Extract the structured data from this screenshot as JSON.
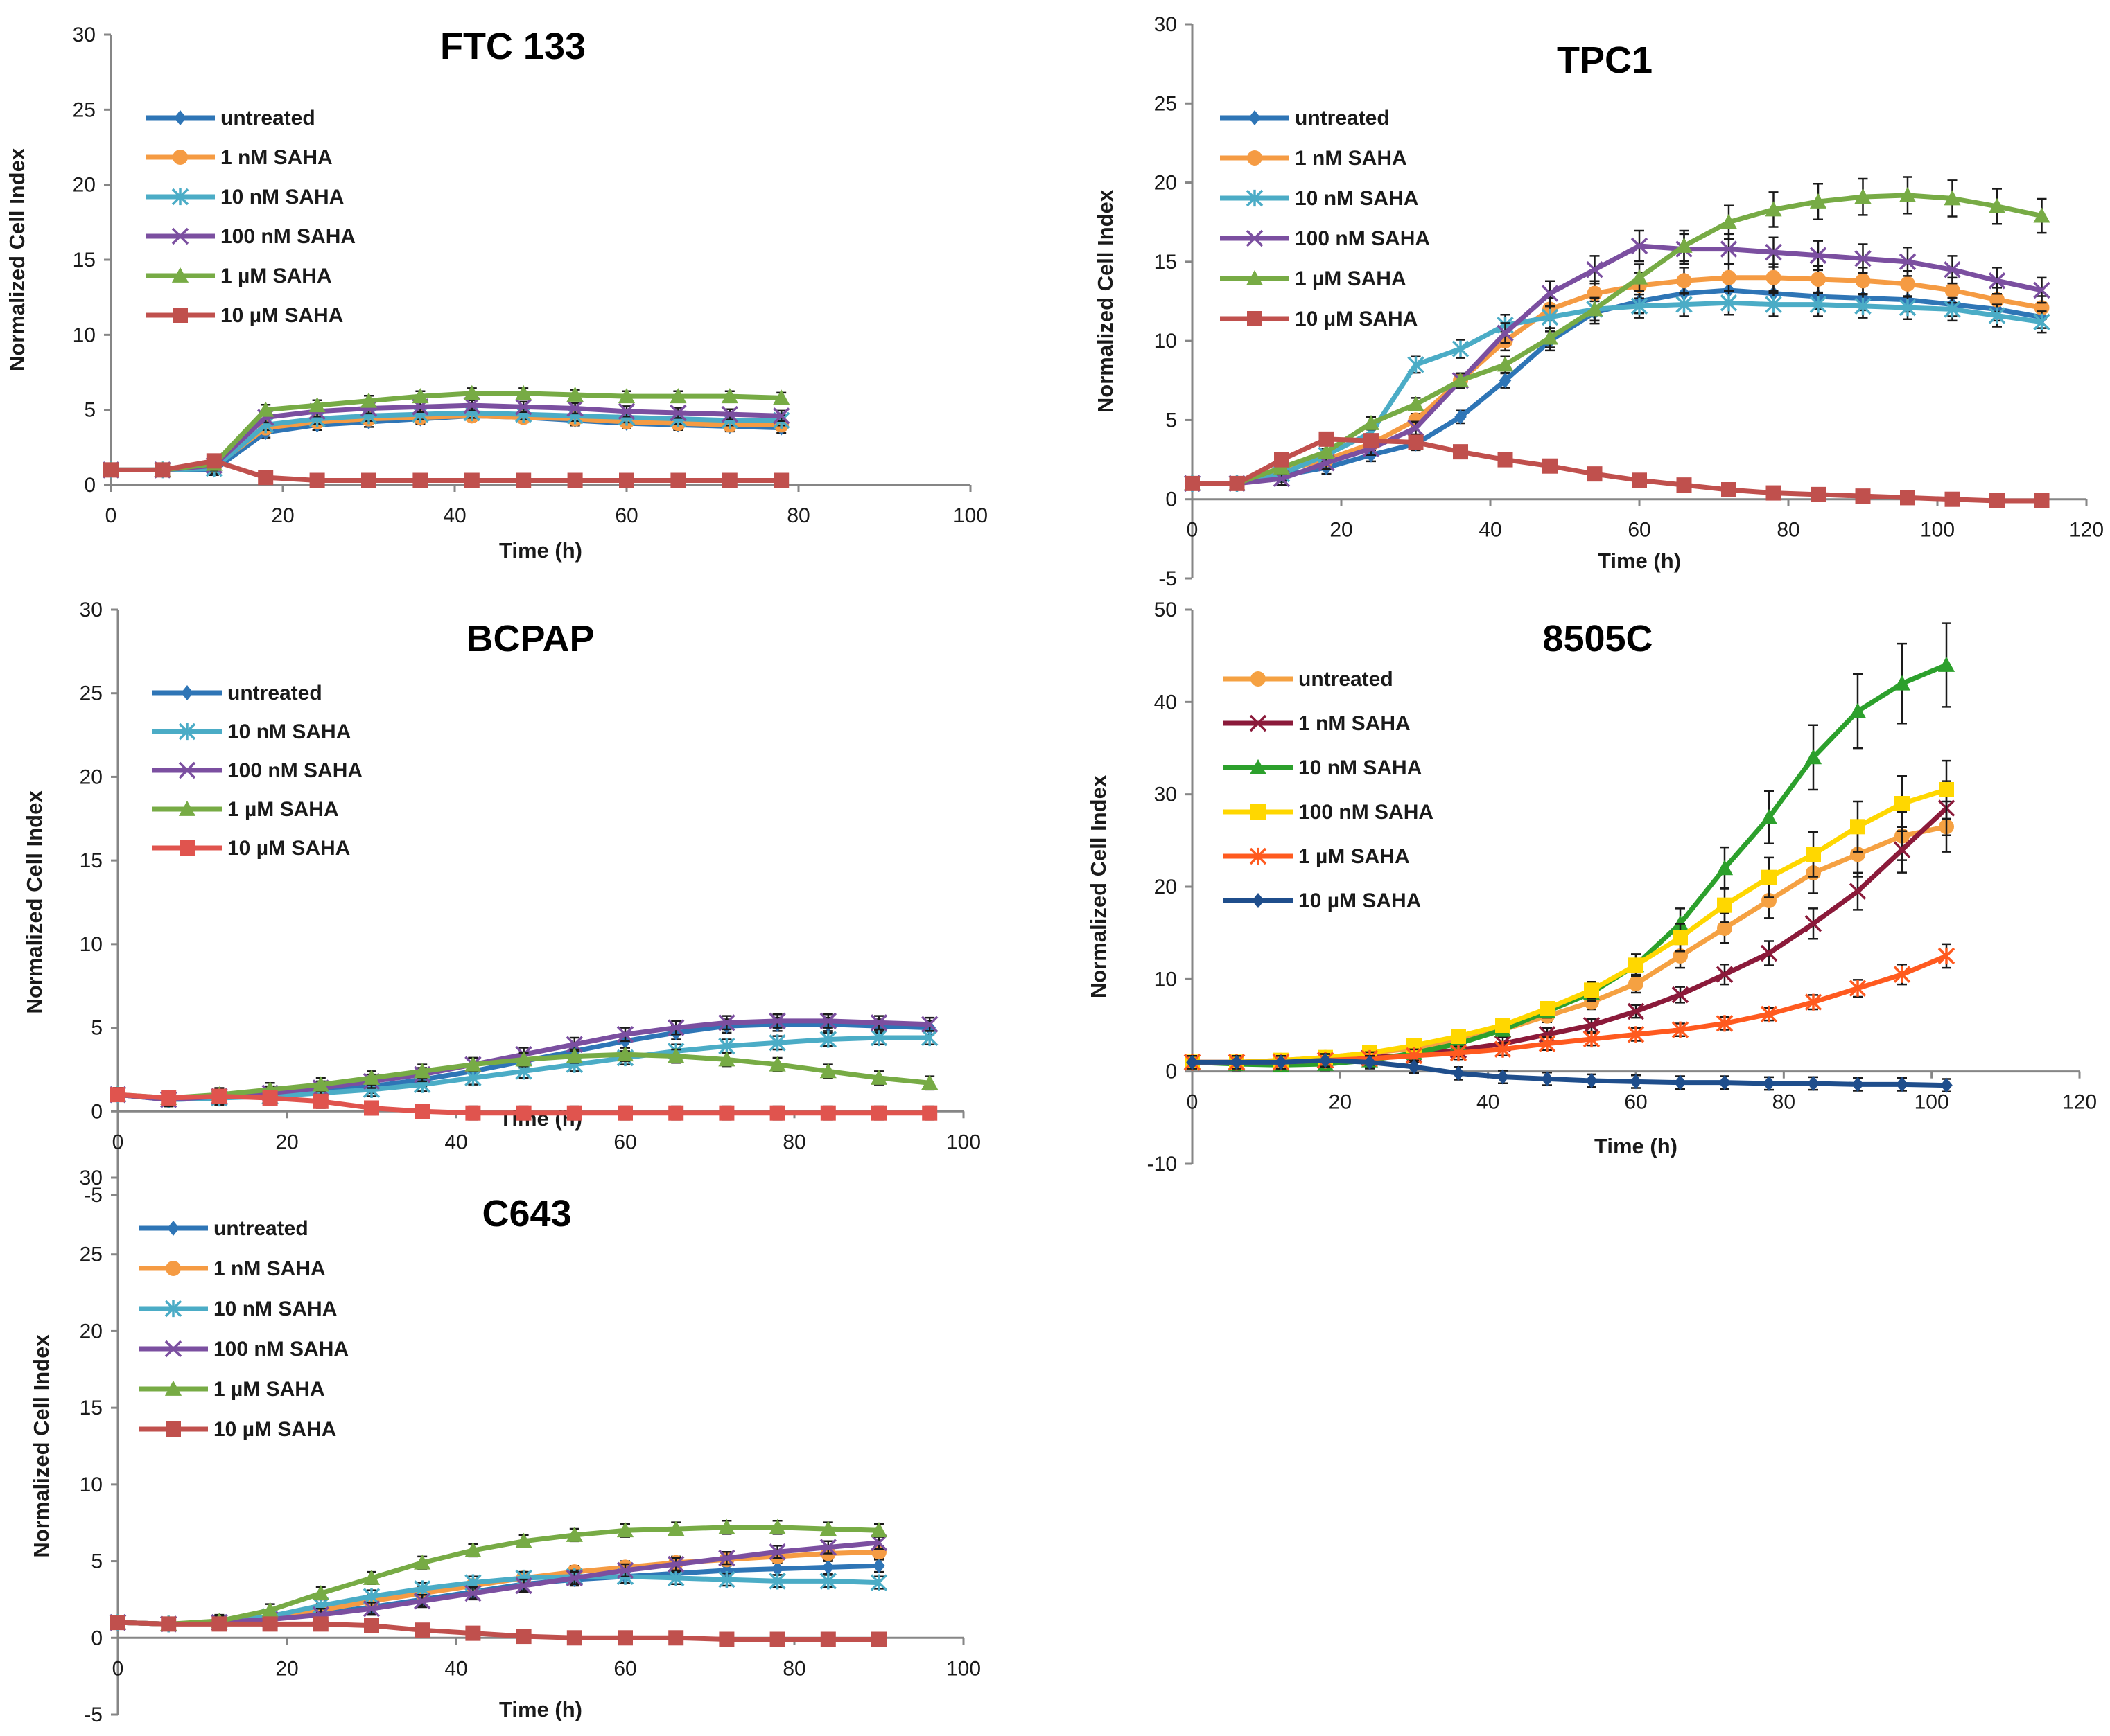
{
  "chart_data": [
    {
      "type": "line",
      "title": "FTC 133",
      "xlabel": "Time (h)",
      "ylabel": "Normalized Cell Index",
      "xlim": [
        0,
        100
      ],
      "ylim": [
        0,
        30
      ],
      "xticks": [
        0,
        20,
        40,
        60,
        80,
        100
      ],
      "yticks": [
        0,
        5,
        10,
        15,
        20,
        25,
        30
      ],
      "legend_position": "top-left",
      "x": [
        0,
        6,
        12,
        18,
        24,
        30,
        36,
        42,
        48,
        54,
        60,
        66,
        72,
        78
      ],
      "series": [
        {
          "name": "untreated",
          "color": "#2e75b6",
          "marker": "diamond",
          "values": [
            1,
            1,
            1,
            3.5,
            4,
            4.2,
            4.4,
            4.6,
            4.5,
            4.3,
            4.1,
            4.0,
            3.9,
            3.8
          ]
        },
        {
          "name": "1 nM SAHA",
          "color": "#f59b43",
          "marker": "circle",
          "values": [
            1,
            1,
            1.2,
            3.8,
            4.2,
            4.4,
            4.5,
            4.6,
            4.5,
            4.4,
            4.2,
            4.1,
            4.0,
            4.0
          ]
        },
        {
          "name": "10 nM SAHA",
          "color": "#4bacc6",
          "marker": "star",
          "values": [
            1,
            1,
            1.1,
            4,
            4.4,
            4.6,
            4.7,
            4.8,
            4.7,
            4.6,
            4.5,
            4.4,
            4.3,
            4.3
          ]
        },
        {
          "name": "100 nM SAHA",
          "color": "#7b4fa0",
          "marker": "x",
          "values": [
            1,
            1,
            1.3,
            4.5,
            4.9,
            5.1,
            5.2,
            5.3,
            5.2,
            5.1,
            4.9,
            4.8,
            4.7,
            4.6
          ]
        },
        {
          "name": "1 µM SAHA",
          "color": "#77ab45",
          "marker": "triangle",
          "values": [
            1,
            1,
            1.4,
            5,
            5.3,
            5.6,
            5.9,
            6.1,
            6.1,
            6.0,
            5.9,
            5.9,
            5.9,
            5.8
          ]
        },
        {
          "name": "10 µM SAHA",
          "color": "#c0504d",
          "marker": "square",
          "values": [
            1,
            1,
            1.6,
            0.5,
            0.3,
            0.3,
            0.3,
            0.3,
            0.3,
            0.3,
            0.3,
            0.3,
            0.3,
            0.3
          ]
        }
      ]
    },
    {
      "type": "line",
      "title": "TPC1",
      "xlabel": "Time (h)",
      "ylabel": "Normalized Cell Index",
      "xlim": [
        0,
        120
      ],
      "ylim": [
        -5,
        30
      ],
      "xticks": [
        0,
        20,
        40,
        60,
        80,
        100,
        120
      ],
      "yticks": [
        -5,
        0,
        5,
        10,
        15,
        20,
        25,
        30
      ],
      "legend_position": "top-left",
      "x": [
        0,
        6,
        12,
        18,
        24,
        30,
        36,
        42,
        48,
        54,
        60,
        66,
        72,
        78,
        84,
        90,
        96,
        102,
        108,
        114
      ],
      "series": [
        {
          "name": "untreated",
          "color": "#2e75b6",
          "marker": "diamond",
          "values": [
            1,
            1,
            1.5,
            2,
            2.8,
            3.5,
            5.2,
            7.5,
            10,
            11.8,
            12.5,
            13,
            13.2,
            13,
            12.8,
            12.7,
            12.6,
            12.3,
            12,
            11.5
          ]
        },
        {
          "name": "1 nM SAHA",
          "color": "#f59b43",
          "marker": "circle",
          "values": [
            1,
            1,
            1.8,
            2.5,
            3.5,
            5,
            7.5,
            10,
            12,
            13,
            13.5,
            13.8,
            14,
            14,
            13.9,
            13.8,
            13.6,
            13.2,
            12.6,
            12.1
          ]
        },
        {
          "name": "10 nM SAHA",
          "color": "#4bacc6",
          "marker": "star",
          "values": [
            1,
            1,
            1.6,
            2.8,
            4.2,
            8.5,
            9.5,
            11,
            11.5,
            12,
            12.2,
            12.3,
            12.4,
            12.3,
            12.3,
            12.2,
            12.1,
            12,
            11.6,
            11.2
          ]
        },
        {
          "name": "100 nM SAHA",
          "color": "#7b4fa0",
          "marker": "x",
          "values": [
            1,
            1,
            1.3,
            2.3,
            3.2,
            4.5,
            7.5,
            10.5,
            13,
            14.5,
            16,
            15.8,
            15.8,
            15.6,
            15.4,
            15.2,
            15,
            14.5,
            13.8,
            13.2
          ]
        },
        {
          "name": "1 µM SAHA",
          "color": "#77ab45",
          "marker": "triangle",
          "values": [
            1,
            1,
            2,
            3,
            4.8,
            6,
            7.5,
            8.5,
            10.2,
            12,
            14,
            16,
            17.5,
            18.3,
            18.8,
            19.1,
            19.2,
            19,
            18.5,
            17.9
          ]
        },
        {
          "name": "10 µM SAHA",
          "color": "#c0504d",
          "marker": "square",
          "values": [
            1,
            1,
            2.5,
            3.8,
            3.7,
            3.6,
            3,
            2.5,
            2.1,
            1.6,
            1.2,
            0.9,
            0.6,
            0.4,
            0.3,
            0.2,
            0.1,
            0,
            -0.1,
            -0.1
          ]
        }
      ]
    },
    {
      "type": "line",
      "title": "BCPAP",
      "xlabel": "Time (h)",
      "ylabel": "Normalized Cell Index",
      "xlim": [
        0,
        100
      ],
      "ylim": [
        -5,
        30
      ],
      "xticks": [
        0,
        20,
        40,
        60,
        80,
        100
      ],
      "yticks": [
        -5,
        0,
        5,
        10,
        15,
        20,
        25,
        30
      ],
      "legend_position": "top-left",
      "x": [
        0,
        6,
        12,
        18,
        24,
        30,
        36,
        42,
        48,
        54,
        60,
        66,
        72,
        78,
        84,
        90,
        96
      ],
      "series": [
        {
          "name": "untreated",
          "color": "#2e75b6",
          "marker": "diamond",
          "values": [
            1,
            0.7,
            0.8,
            1,
            1.2,
            1.5,
            1.9,
            2.4,
            3,
            3.6,
            4.2,
            4.7,
            5.1,
            5.2,
            5.2,
            5.1,
            5
          ]
        },
        {
          "name": "10 nM SAHA",
          "color": "#4bacc6",
          "marker": "star",
          "values": [
            1,
            0.7,
            0.8,
            0.9,
            1.1,
            1.3,
            1.6,
            2,
            2.4,
            2.8,
            3.2,
            3.6,
            3.9,
            4.1,
            4.3,
            4.4,
            4.4
          ]
        },
        {
          "name": "100 nM SAHA",
          "color": "#7b4fa0",
          "marker": "x",
          "values": [
            1,
            0.7,
            0.9,
            1.1,
            1.4,
            1.8,
            2.2,
            2.8,
            3.4,
            4,
            4.6,
            5,
            5.3,
            5.4,
            5.4,
            5.3,
            5.2
          ]
        },
        {
          "name": "1 µM SAHA",
          "color": "#77ab45",
          "marker": "triangle",
          "values": [
            1,
            0.8,
            1,
            1.3,
            1.6,
            2,
            2.4,
            2.8,
            3.1,
            3.3,
            3.4,
            3.3,
            3.1,
            2.8,
            2.4,
            2,
            1.7
          ]
        },
        {
          "name": "10 µM SAHA",
          "color": "#e0544e",
          "marker": "square",
          "values": [
            1,
            0.8,
            0.9,
            0.8,
            0.6,
            0.2,
            0,
            -0.1,
            -0.1,
            -0.1,
            -0.1,
            -0.1,
            -0.1,
            -0.1,
            -0.1,
            -0.1,
            -0.1
          ]
        }
      ]
    },
    {
      "type": "line",
      "title": "8505C",
      "xlabel": "Time (h)",
      "ylabel": "Normalized Cell Index",
      "xlim": [
        0,
        120
      ],
      "ylim": [
        -10,
        50
      ],
      "xticks": [
        0,
        20,
        40,
        60,
        80,
        100,
        120
      ],
      "yticks": [
        -10,
        0,
        10,
        20,
        30,
        40,
        50
      ],
      "legend_position": "top-left",
      "x": [
        0,
        6,
        12,
        18,
        24,
        30,
        36,
        42,
        48,
        54,
        60,
        66,
        72,
        78,
        84,
        90,
        96,
        102
      ],
      "series": [
        {
          "name": "untreated",
          "color": "#f5a142",
          "marker": "circle",
          "values": [
            1,
            1,
            1.2,
            1.5,
            2,
            2.5,
            3.5,
            4.5,
            6,
            7.5,
            9.5,
            12.5,
            15.5,
            18.5,
            21.5,
            23.5,
            25.5,
            26.5
          ]
        },
        {
          "name": "1 nM SAHA",
          "color": "#8b1a3a",
          "marker": "x",
          "values": [
            1,
            1,
            1.1,
            1.2,
            1.5,
            1.8,
            2.3,
            3,
            4,
            5,
            6.5,
            8.3,
            10.5,
            12.8,
            16,
            19.5,
            24,
            28.5
          ]
        },
        {
          "name": "10 nM SAHA",
          "color": "#2ca02c",
          "marker": "triangle",
          "values": [
            1,
            0.8,
            0.7,
            0.8,
            1.2,
            2,
            3,
            4.5,
            6.5,
            8.5,
            11.5,
            16,
            22,
            27.5,
            34,
            39,
            42,
            44
          ]
        },
        {
          "name": "100 nM SAHA",
          "color": "#ffd700",
          "marker": "square",
          "values": [
            1,
            1,
            1.2,
            1.5,
            2,
            2.8,
            3.8,
            5,
            6.8,
            8.8,
            11.5,
            14.5,
            18,
            21,
            23.5,
            26.5,
            29,
            30.5
          ]
        },
        {
          "name": "1 µM SAHA",
          "color": "#ff5a1f",
          "marker": "star",
          "values": [
            1,
            1,
            1,
            1.2,
            1.4,
            1.7,
            2,
            2.4,
            3,
            3.5,
            4,
            4.5,
            5.2,
            6.2,
            7.5,
            9,
            10.5,
            12.5
          ]
        },
        {
          "name": "10 µM SAHA",
          "color": "#1f4e8c",
          "marker": "diamond",
          "values": [
            1,
            1,
            1,
            1.2,
            1,
            0.5,
            -0.2,
            -0.6,
            -0.8,
            -1,
            -1.1,
            -1.2,
            -1.2,
            -1.3,
            -1.3,
            -1.4,
            -1.4,
            -1.5
          ]
        }
      ]
    },
    {
      "type": "line",
      "title": "C643",
      "xlabel": "Time (h)",
      "ylabel": "Normalized Cell Index",
      "xlim": [
        0,
        100
      ],
      "ylim": [
        -5,
        30
      ],
      "xticks": [
        0,
        20,
        40,
        60,
        80,
        100
      ],
      "yticks": [
        -5,
        0,
        5,
        10,
        15,
        20,
        25,
        30
      ],
      "legend_position": "top-left",
      "x": [
        0,
        6,
        12,
        18,
        24,
        30,
        36,
        42,
        48,
        54,
        60,
        66,
        72,
        78,
        84,
        90
      ],
      "series": [
        {
          "name": "untreated",
          "color": "#2e75b6",
          "marker": "diamond",
          "values": [
            1,
            0.9,
            1,
            1.2,
            1.6,
            2,
            2.5,
            3,
            3.5,
            3.8,
            4,
            4.2,
            4.4,
            4.5,
            4.6,
            4.7
          ]
        },
        {
          "name": "1 nM SAHA",
          "color": "#f59b43",
          "marker": "circle",
          "values": [
            1,
            0.9,
            1,
            1.3,
            1.8,
            2.4,
            2.9,
            3.4,
            3.9,
            4.3,
            4.6,
            4.9,
            5.1,
            5.3,
            5.5,
            5.6
          ]
        },
        {
          "name": "10 nM SAHA",
          "color": "#4bacc6",
          "marker": "star",
          "values": [
            1,
            0.9,
            1,
            1.4,
            2.1,
            2.7,
            3.2,
            3.6,
            3.9,
            4,
            4,
            3.9,
            3.8,
            3.7,
            3.7,
            3.6
          ]
        },
        {
          "name": "100 nM SAHA",
          "color": "#7b4fa0",
          "marker": "x",
          "values": [
            1,
            0.9,
            1,
            1.2,
            1.5,
            1.9,
            2.4,
            2.9,
            3.4,
            3.9,
            4.4,
            4.8,
            5.2,
            5.6,
            5.9,
            6.2
          ]
        },
        {
          "name": "1 µM SAHA",
          "color": "#77ab45",
          "marker": "triangle",
          "values": [
            1,
            0.9,
            1.1,
            1.8,
            2.9,
            3.9,
            4.9,
            5.7,
            6.3,
            6.7,
            7,
            7.1,
            7.2,
            7.2,
            7.1,
            7
          ]
        },
        {
          "name": "10 µM SAHA",
          "color": "#c0504d",
          "marker": "square",
          "values": [
            1,
            0.9,
            0.9,
            0.9,
            0.9,
            0.8,
            0.5,
            0.3,
            0.1,
            0,
            0,
            0,
            -0.1,
            -0.1,
            -0.1,
            -0.1
          ]
        }
      ]
    }
  ]
}
